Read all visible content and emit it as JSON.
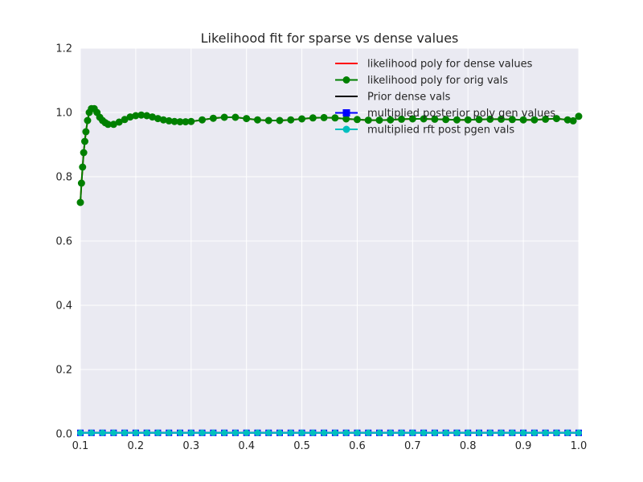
{
  "chart_data": {
    "type": "line",
    "title": "Likelihood fit for sparse vs dense values",
    "xlabel": "",
    "ylabel": "",
    "xlim": [
      0.1,
      1.0
    ],
    "ylim": [
      0.0,
      1.2
    ],
    "x_ticks": [
      "0.1",
      "0.2",
      "0.3",
      "0.4",
      "0.5",
      "0.6",
      "0.7",
      "0.8",
      "0.9",
      "1.0"
    ],
    "y_ticks": [
      "0.0",
      "0.2",
      "0.4",
      "0.6",
      "0.8",
      "1.0",
      "1.2"
    ],
    "grid": true,
    "legend_position": "top-right",
    "series": [
      {
        "name": "likelihood poly for dense values",
        "color": "#ff0000",
        "marker": "none",
        "x": [
          0.1,
          0.102,
          0.104,
          0.106,
          0.108,
          0.11,
          0.113,
          0.116,
          0.12,
          0.125,
          0.13,
          0.135,
          0.14,
          0.145,
          0.15,
          0.16,
          0.17,
          0.18,
          0.19,
          0.2,
          0.21,
          0.22,
          0.23,
          0.24,
          0.25,
          0.26,
          0.27,
          0.28,
          0.29,
          0.3,
          0.32,
          0.34,
          0.36,
          0.38,
          0.4,
          0.42,
          0.44,
          0.46,
          0.48,
          0.5,
          0.52,
          0.54,
          0.56,
          0.58,
          0.6,
          0.62,
          0.64,
          0.66,
          0.68,
          0.7,
          0.72,
          0.74,
          0.76,
          0.78,
          0.8,
          0.82,
          0.84,
          0.86,
          0.88,
          0.9,
          0.92,
          0.94,
          0.96,
          0.98,
          0.99,
          1.0
        ],
        "y": [
          0.72,
          0.78,
          0.83,
          0.875,
          0.91,
          0.94,
          0.975,
          1.0,
          1.012,
          1.012,
          1.0,
          0.985,
          0.975,
          0.968,
          0.963,
          0.963,
          0.97,
          0.978,
          0.986,
          0.99,
          0.992,
          0.99,
          0.986,
          0.981,
          0.977,
          0.974,
          0.972,
          0.971,
          0.971,
          0.972,
          0.977,
          0.982,
          0.985,
          0.985,
          0.981,
          0.977,
          0.975,
          0.975,
          0.977,
          0.98,
          0.983,
          0.984,
          0.983,
          0.98,
          0.978,
          0.976,
          0.976,
          0.977,
          0.979,
          0.98,
          0.98,
          0.979,
          0.978,
          0.977,
          0.977,
          0.978,
          0.979,
          0.979,
          0.978,
          0.977,
          0.977,
          0.979,
          0.981,
          0.977,
          0.974,
          0.988
        ]
      },
      {
        "name": "likelihood poly for orig vals",
        "color": "#008000",
        "marker": "circle",
        "x": [
          0.1,
          0.102,
          0.104,
          0.106,
          0.108,
          0.11,
          0.113,
          0.116,
          0.12,
          0.125,
          0.13,
          0.135,
          0.14,
          0.145,
          0.15,
          0.16,
          0.17,
          0.18,
          0.19,
          0.2,
          0.21,
          0.22,
          0.23,
          0.24,
          0.25,
          0.26,
          0.27,
          0.28,
          0.29,
          0.3,
          0.32,
          0.34,
          0.36,
          0.38,
          0.4,
          0.42,
          0.44,
          0.46,
          0.48,
          0.5,
          0.52,
          0.54,
          0.56,
          0.58,
          0.6,
          0.62,
          0.64,
          0.66,
          0.68,
          0.7,
          0.72,
          0.74,
          0.76,
          0.78,
          0.8,
          0.82,
          0.84,
          0.86,
          0.88,
          0.9,
          0.92,
          0.94,
          0.96,
          0.98,
          0.99,
          1.0
        ],
        "y": [
          0.72,
          0.78,
          0.83,
          0.875,
          0.91,
          0.94,
          0.975,
          1.0,
          1.012,
          1.012,
          1.0,
          0.985,
          0.975,
          0.968,
          0.963,
          0.963,
          0.97,
          0.978,
          0.986,
          0.99,
          0.992,
          0.99,
          0.986,
          0.981,
          0.977,
          0.974,
          0.972,
          0.971,
          0.971,
          0.972,
          0.977,
          0.982,
          0.985,
          0.985,
          0.981,
          0.977,
          0.975,
          0.975,
          0.977,
          0.98,
          0.983,
          0.984,
          0.983,
          0.98,
          0.978,
          0.976,
          0.976,
          0.977,
          0.979,
          0.98,
          0.98,
          0.979,
          0.978,
          0.977,
          0.977,
          0.978,
          0.979,
          0.979,
          0.978,
          0.977,
          0.977,
          0.979,
          0.981,
          0.977,
          0.974,
          0.988
        ]
      },
      {
        "name": "Prior dense vals",
        "color": "#000000",
        "marker": "none",
        "x": [
          0.1,
          1.0
        ],
        "y": [
          0.003,
          0.003
        ]
      },
      {
        "name": "multiplied posterior poly gen values",
        "color": "#0000ff",
        "marker": "square",
        "x": [
          0.1,
          0.12,
          0.14,
          0.16,
          0.18,
          0.2,
          0.22,
          0.24,
          0.26,
          0.28,
          0.3,
          0.32,
          0.34,
          0.36,
          0.38,
          0.4,
          0.42,
          0.44,
          0.46,
          0.48,
          0.5,
          0.52,
          0.54,
          0.56,
          0.58,
          0.6,
          0.62,
          0.64,
          0.66,
          0.68,
          0.7,
          0.72,
          0.74,
          0.76,
          0.78,
          0.8,
          0.82,
          0.84,
          0.86,
          0.88,
          0.9,
          0.92,
          0.94,
          0.96,
          0.98,
          1.0
        ],
        "y": [
          0.003,
          0.003,
          0.003,
          0.003,
          0.003,
          0.003,
          0.003,
          0.003,
          0.003,
          0.003,
          0.003,
          0.003,
          0.003,
          0.003,
          0.003,
          0.003,
          0.003,
          0.003,
          0.003,
          0.003,
          0.003,
          0.003,
          0.003,
          0.003,
          0.003,
          0.003,
          0.003,
          0.003,
          0.003,
          0.003,
          0.003,
          0.003,
          0.003,
          0.003,
          0.003,
          0.003,
          0.003,
          0.003,
          0.003,
          0.003,
          0.003,
          0.003,
          0.003,
          0.003,
          0.003,
          0.003
        ]
      },
      {
        "name": "multiplied rft post pgen vals",
        "color": "#00bfbf",
        "marker": "circle",
        "x": [
          0.1,
          0.12,
          0.14,
          0.16,
          0.18,
          0.2,
          0.22,
          0.24,
          0.26,
          0.28,
          0.3,
          0.32,
          0.34,
          0.36,
          0.38,
          0.4,
          0.42,
          0.44,
          0.46,
          0.48,
          0.5,
          0.52,
          0.54,
          0.56,
          0.58,
          0.6,
          0.62,
          0.64,
          0.66,
          0.68,
          0.7,
          0.72,
          0.74,
          0.76,
          0.78,
          0.8,
          0.82,
          0.84,
          0.86,
          0.88,
          0.9,
          0.92,
          0.94,
          0.96,
          0.98,
          1.0
        ],
        "y": [
          0.003,
          0.003,
          0.003,
          0.003,
          0.003,
          0.003,
          0.003,
          0.003,
          0.003,
          0.003,
          0.003,
          0.003,
          0.003,
          0.003,
          0.003,
          0.003,
          0.003,
          0.003,
          0.003,
          0.003,
          0.003,
          0.003,
          0.003,
          0.003,
          0.003,
          0.003,
          0.003,
          0.003,
          0.003,
          0.003,
          0.003,
          0.003,
          0.003,
          0.003,
          0.003,
          0.003,
          0.003,
          0.003,
          0.003,
          0.003,
          0.003,
          0.003,
          0.003,
          0.003,
          0.003,
          0.003
        ]
      }
    ],
    "colors": {
      "plot_background": "#eaeaf2",
      "grid": "#ffffff",
      "text": "#262626"
    }
  }
}
